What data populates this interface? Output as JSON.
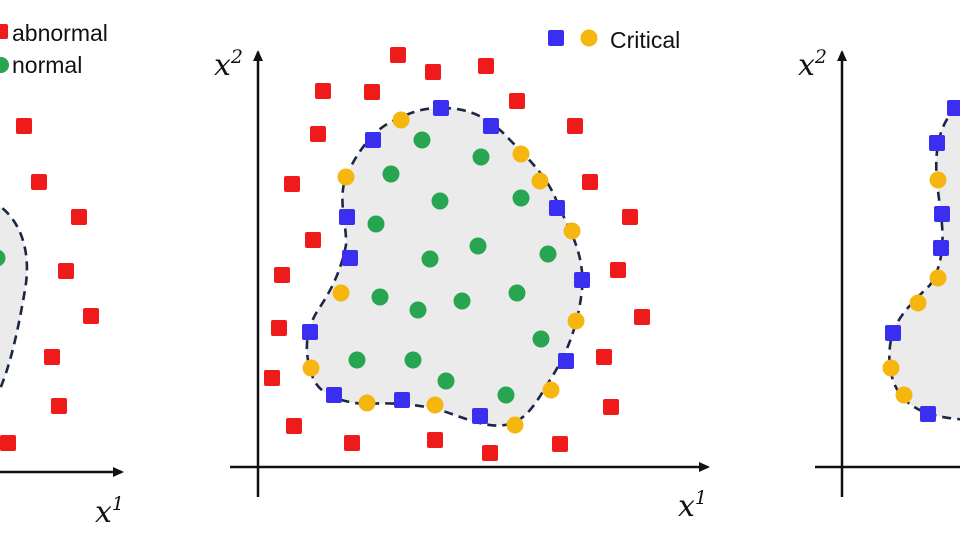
{
  "legend": {
    "abnormal_label": "abnormal",
    "normal_label": "normal",
    "critical_label": "Critical"
  },
  "axis_labels": {
    "x_base": "x",
    "x_sup": "1",
    "y_base": "x",
    "y_sup": "2"
  },
  "colors": {
    "abnormal": "#ef1b1b",
    "normal": "#27a550",
    "critical_square": "#3a2ff0",
    "critical_circle": "#f5b70f",
    "region_fill": "#ebebeb",
    "boundary": "#1b2745",
    "axis": "#111111"
  },
  "panels": [
    "left-panel",
    "center-panel",
    "right-panel"
  ]
}
